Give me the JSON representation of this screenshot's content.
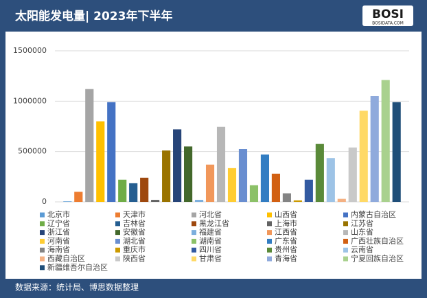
{
  "chart_data": {
    "type": "bar",
    "title": "太阳能发电量| 2023年下半年",
    "logo": {
      "brand": "BOSI",
      "site": "BOSIDATA.COM"
    },
    "source": "数据来源：统计局、博思数据整理",
    "categories": [
      null
    ],
    "ylim": [
      0,
      1500000
    ],
    "yticks": [
      0,
      500000,
      1000000,
      1500000
    ],
    "grid": true,
    "series": [
      {
        "name": "北京市",
        "color": "#5b9bd5",
        "values": [
          5000
        ]
      },
      {
        "name": "天津市",
        "color": "#ed7d31",
        "values": [
          100000
        ]
      },
      {
        "name": "河北省",
        "color": "#a5a5a5",
        "values": [
          1120000
        ]
      },
      {
        "name": "山西省",
        "color": "#ffc000",
        "values": [
          800000
        ]
      },
      {
        "name": "内蒙古自治区",
        "color": "#4472c4",
        "values": [
          990000
        ]
      },
      {
        "name": "辽宁省",
        "color": "#70ad47",
        "values": [
          220000
        ]
      },
      {
        "name": "吉林省",
        "color": "#255e91",
        "values": [
          185000
        ]
      },
      {
        "name": "黑龙江省",
        "color": "#9e480e",
        "values": [
          240000
        ]
      },
      {
        "name": "上海市",
        "color": "#636363",
        "values": [
          20000
        ]
      },
      {
        "name": "江苏省",
        "color": "#997300",
        "values": [
          510000
        ]
      },
      {
        "name": "浙江省",
        "color": "#264478",
        "values": [
          720000
        ]
      },
      {
        "name": "安徽省",
        "color": "#43682b",
        "values": [
          550000
        ]
      },
      {
        "name": "福建省",
        "color": "#7cafdd",
        "values": [
          20000
        ]
      },
      {
        "name": "江西省",
        "color": "#f1975a",
        "values": [
          370000
        ]
      },
      {
        "name": "山东省",
        "color": "#b7b7b7",
        "values": [
          745000
        ]
      },
      {
        "name": "河南省",
        "color": "#ffcd33",
        "values": [
          335000
        ]
      },
      {
        "name": "湖北省",
        "color": "#698ed0",
        "values": [
          525000
        ]
      },
      {
        "name": "湖南省",
        "color": "#8cc168",
        "values": [
          165000
        ]
      },
      {
        "name": "广东省",
        "color": "#327dc2",
        "values": [
          470000
        ]
      },
      {
        "name": "广西壮族自治区",
        "color": "#d26012",
        "values": [
          280000
        ]
      },
      {
        "name": "海南省",
        "color": "#848484",
        "values": [
          85000
        ]
      },
      {
        "name": "重庆市",
        "color": "#cc9a00",
        "values": [
          15000
        ]
      },
      {
        "name": "四川省",
        "color": "#335aa1",
        "values": [
          220000
        ]
      },
      {
        "name": "贵州省",
        "color": "#5a8a39",
        "values": [
          575000
        ]
      },
      {
        "name": "云南省",
        "color": "#9dc3e6",
        "values": [
          435000
        ]
      },
      {
        "name": "西藏自治区",
        "color": "#f4b183",
        "values": [
          30000
        ]
      },
      {
        "name": "陕西省",
        "color": "#c9c9c9",
        "values": [
          540000
        ]
      },
      {
        "name": "甘肃省",
        "color": "#ffd966",
        "values": [
          905000
        ]
      },
      {
        "name": "青海省",
        "color": "#8faadc",
        "values": [
          1050000
        ]
      },
      {
        "name": "宁夏回族自治区",
        "color": "#a9d18e",
        "values": [
          1210000
        ]
      },
      {
        "name": "新疆维吾尔自治区",
        "color": "#1f4e79",
        "values": [
          990000
        ]
      }
    ]
  }
}
